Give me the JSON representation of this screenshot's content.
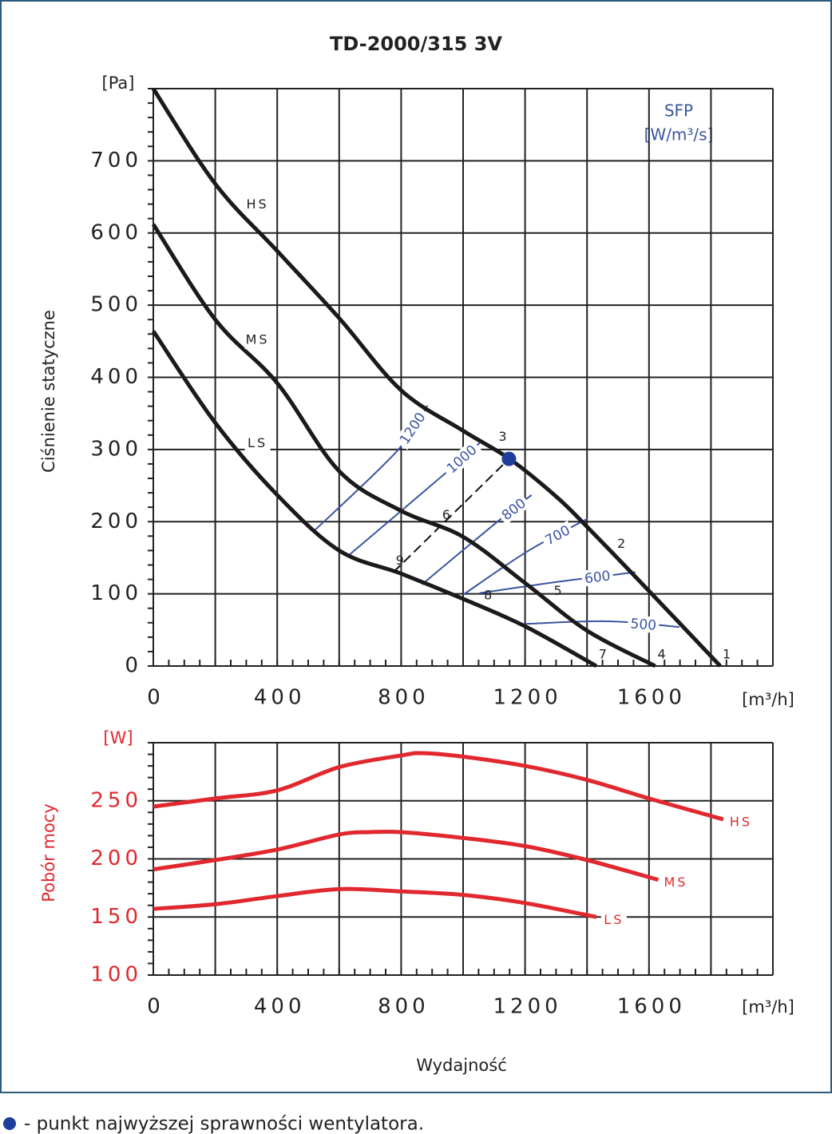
{
  "chart_data": [
    {
      "type": "line",
      "title": "TD-2000/315 3V",
      "y_label": "Ciśnienie statyczne",
      "y_unit": "[Pa]",
      "x_unit": "[m³/h]",
      "xlim": [
        0,
        2000
      ],
      "ylim": [
        0,
        800
      ],
      "xticks": [
        0,
        400,
        800,
        1200,
        1600
      ],
      "yticks": [
        0,
        100,
        200,
        300,
        400,
        500,
        600,
        700
      ],
      "xgrid": [
        0,
        200,
        400,
        600,
        800,
        1000,
        1200,
        1400,
        1600,
        1800,
        2000
      ],
      "ygrid": [
        0,
        100,
        200,
        300,
        400,
        500,
        600,
        700,
        800
      ],
      "xminor": 50,
      "yminor": 20,
      "series": [
        {
          "name": "HS",
          "color": "#1a1a1a",
          "x": [
            0,
            200,
            400,
            600,
            800,
            1000,
            1150,
            1300,
            1400,
            1600,
            1830
          ],
          "values": [
            800,
            668,
            575,
            482,
            382,
            326,
            287,
            235,
            193,
            104,
            0
          ]
        },
        {
          "name": "MS",
          "color": "#1a1a1a",
          "x": [
            0,
            200,
            400,
            600,
            800,
            1000,
            1200,
            1400,
            1620
          ],
          "values": [
            612,
            480,
            392,
            270,
            215,
            179,
            115,
            49,
            0
          ]
        },
        {
          "name": "LS",
          "color": "#1a1a1a",
          "x": [
            0,
            200,
            400,
            600,
            800,
            1000,
            1200,
            1430
          ],
          "values": [
            464,
            337,
            237,
            160,
            128,
            93,
            55,
            0
          ]
        }
      ],
      "sfp_title": "SFP",
      "sfp_unit": "[W/m³/s]",
      "sfp_color": "#3a55a0",
      "sfp_lines": [
        {
          "label": "1200",
          "x": [
            516,
            787,
            885
          ],
          "values": [
            186,
            298,
            361
          ]
        },
        {
          "label": "1000",
          "x": [
            627,
            937,
            1053
          ],
          "values": [
            152,
            265,
            309
          ]
        },
        {
          "label": "800",
          "x": [
            867,
            1105,
            1221
          ],
          "values": [
            113,
            198,
            237
          ]
        },
        {
          "label": "700",
          "x": [
            1001,
            1208,
            1401
          ],
          "values": [
            99,
            159,
            204
          ]
        },
        {
          "label": "600",
          "x": [
            1053,
            1311,
            1556
          ],
          "values": [
            101,
            117,
            130
          ]
        },
        {
          "label": "500",
          "x": [
            1182,
            1466,
            1698
          ],
          "values": [
            58,
            62,
            54
          ]
        }
      ],
      "operating_points": [
        {
          "label": "1",
          "x": 1830,
          "y": 0
        },
        {
          "label": "2",
          "x": 1490,
          "y": 153
        },
        {
          "label": "3",
          "x": 1148,
          "y": 287
        },
        {
          "label": "4",
          "x": 1620,
          "y": 0
        },
        {
          "label": "5",
          "x": 1285,
          "y": 88
        },
        {
          "label": "6",
          "x": 925,
          "y": 193
        },
        {
          "label": "7",
          "x": 1430,
          "y": 0
        },
        {
          "label": "8",
          "x": 1060,
          "y": 82
        },
        {
          "label": "9",
          "x": 775,
          "y": 130
        }
      ],
      "best_point": "3",
      "best_point_color": "#1f3d9c",
      "dashed": [
        "9",
        "3"
      ]
    },
    {
      "type": "line",
      "y_label": "Pobór mocy",
      "y_unit": "[W]",
      "x_unit": "[m³/h]",
      "x_label": "Wydajność",
      "axis_color": "#e0282e",
      "xlim": [
        0,
        2000
      ],
      "ylim": [
        100,
        300
      ],
      "xticks": [
        0,
        400,
        800,
        1200,
        1600
      ],
      "yticks": [
        100,
        150,
        200,
        250
      ],
      "xgrid": [
        0,
        200,
        400,
        600,
        800,
        1000,
        1200,
        1400,
        1600,
        1800,
        2000
      ],
      "ygrid": [
        100,
        150,
        200,
        250,
        300
      ],
      "xminor": 50,
      "yminor": 10,
      "series": [
        {
          "name": "HS",
          "color": "#e0282e",
          "x": [
            0,
            200,
            400,
            600,
            800,
            870,
            1000,
            1200,
            1400,
            1600,
            1840
          ],
          "values": [
            245,
            252,
            259,
            279,
            289,
            291,
            288,
            280,
            268,
            252,
            234
          ]
        },
        {
          "name": "MS",
          "color": "#e0282e",
          "x": [
            0,
            200,
            400,
            600,
            700,
            800,
            1000,
            1200,
            1400,
            1630
          ],
          "values": [
            191,
            199,
            208,
            221,
            223,
            223,
            218,
            211,
            199,
            182
          ]
        },
        {
          "name": "LS",
          "color": "#e0282e",
          "x": [
            0,
            200,
            400,
            600,
            800,
            1000,
            1200,
            1430
          ],
          "values": [
            157,
            161,
            168,
            174,
            172,
            169,
            162,
            150
          ]
        }
      ]
    }
  ],
  "footnote": "- punkt najwyższej sprawności wentylatora."
}
